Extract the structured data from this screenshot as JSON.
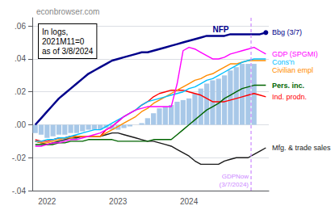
{
  "chart_data": {
    "type": "bar",
    "title": "econbrowser.com",
    "annotations": [
      {
        "text": "In logs,\n2021M11=0\nas of 3/8/2024"
      },
      {
        "text": "Bbg (3/7)",
        "color": "#00008B",
        "series": "NFP"
      },
      {
        "text": "GDPNow\n(3/7/2024)",
        "color": "#CC88FF"
      }
    ],
    "categories": [
      null,
      null,
      "2022",
      null,
      null,
      null,
      null,
      null,
      null,
      null,
      null,
      null,
      null,
      null,
      "2023",
      null,
      null,
      null,
      null,
      null,
      null,
      null,
      null,
      null,
      null,
      null,
      "2024",
      null,
      null,
      null,
      null,
      null,
      null,
      null,
      null,
      null,
      null,
      null,
      null,
      null
    ],
    "series": [
      {
        "type": "bar",
        "color": "#A8C8E8",
        "values": [
          -0.005,
          -0.006,
          -0.008,
          -0.007,
          -0.006,
          -0.006,
          -0.005,
          -0.005,
          -0.004,
          -0.003,
          -0.003,
          -0.003,
          -0.002,
          -0.003,
          -0.003,
          -0.002,
          -0.001,
          0.0,
          0.001,
          0.004,
          0.007,
          0.01,
          0.011,
          0.012,
          0.014,
          0.015,
          0.016,
          0.019,
          0.022,
          0.025,
          0.027,
          0.028,
          0.03,
          0.033,
          0.035,
          0.037,
          0.037,
          0.037,
          0.0,
          0.0
        ]
      },
      {
        "type": "line",
        "name": "Mfg. & trade sales",
        "color": "#1A1A1A",
        "values": [
          -0.01,
          -0.011,
          -0.012,
          -0.011,
          -0.01,
          -0.009,
          -0.008,
          -0.008,
          -0.007,
          -0.007,
          -0.007,
          -0.007,
          -0.006,
          -0.005,
          -0.005,
          -0.006,
          -0.007,
          -0.008,
          -0.009,
          -0.01,
          -0.01,
          -0.011,
          -0.012,
          -0.013,
          -0.015,
          -0.017,
          -0.019,
          -0.022,
          -0.024,
          -0.024,
          -0.024,
          -0.024,
          -0.022,
          -0.021,
          -0.02,
          -0.02,
          -0.02,
          -0.018,
          -0.016,
          -0.014
        ]
      },
      {
        "type": "line",
        "name": "Ind. prodn.",
        "color": "#FF0000",
        "values": [
          -0.009,
          -0.01,
          -0.01,
          -0.009,
          -0.008,
          -0.008,
          -0.007,
          -0.007,
          -0.007,
          -0.007,
          -0.007,
          -0.007,
          -0.003,
          -0.001,
          0.002,
          0.005,
          0.007,
          0.009,
          0.012,
          0.014,
          0.017,
          0.019,
          0.02,
          0.021,
          0.021,
          0.021,
          0.02,
          0.019,
          0.018,
          0.016,
          0.014,
          0.014,
          0.014,
          0.015,
          0.016,
          0.017,
          0.018,
          0.019,
          0.018,
          0.017
        ]
      },
      {
        "type": "line",
        "name": "Pers. inc.",
        "color": "#006400",
        "values": [
          -0.012,
          -0.012,
          -0.012,
          -0.012,
          -0.011,
          -0.011,
          -0.01,
          -0.01,
          -0.01,
          -0.009,
          -0.009,
          -0.009,
          -0.009,
          -0.009,
          -0.01,
          -0.01,
          -0.01,
          -0.01,
          -0.01,
          -0.01,
          -0.009,
          -0.009,
          -0.009,
          -0.009,
          -0.006,
          -0.003,
          0.0,
          0.003,
          0.006,
          0.009,
          0.011,
          0.013,
          0.016,
          0.018,
          0.02,
          0.022,
          0.023,
          0.024,
          0.024,
          0.024
        ]
      },
      {
        "type": "line",
        "name": "Civilian empl",
        "color": "#FF8C00",
        "values": [
          -0.01,
          -0.011,
          -0.011,
          -0.01,
          -0.009,
          -0.008,
          -0.008,
          -0.007,
          -0.007,
          -0.007,
          -0.007,
          -0.007,
          -0.005,
          -0.003,
          -0.001,
          0.001,
          0.003,
          0.005,
          0.008,
          0.01,
          0.013,
          0.015,
          0.017,
          0.019,
          0.021,
          0.023,
          0.025,
          0.027,
          0.028,
          0.03,
          0.031,
          0.033,
          0.035,
          0.037,
          0.037,
          0.038,
          0.039,
          0.039,
          0.039,
          0.039
        ]
      },
      {
        "type": "line",
        "name": "Cons'n",
        "color": "#00BFFF",
        "values": [
          -0.01,
          -0.01,
          -0.009,
          -0.009,
          -0.008,
          -0.008,
          -0.007,
          -0.006,
          -0.005,
          -0.004,
          -0.003,
          -0.003,
          -0.001,
          0.001,
          0.003,
          0.005,
          0.007,
          0.009,
          0.012,
          0.014,
          0.015,
          0.016,
          0.017,
          0.018,
          0.019,
          0.02,
          0.022,
          0.023,
          0.025,
          0.027,
          0.028,
          0.03,
          0.032,
          0.034,
          0.036,
          0.038,
          0.039,
          0.04,
          0.04,
          0.04
        ]
      },
      {
        "type": "line",
        "name": "GDP (SPGMI)",
        "color": "#FF00FF",
        "values": [
          -0.013,
          -0.013,
          -0.012,
          -0.011,
          -0.011,
          -0.01,
          -0.009,
          -0.009,
          -0.008,
          -0.007,
          -0.006,
          -0.005,
          -0.003,
          -0.001,
          0.002,
          0.005,
          0.007,
          0.009,
          0.01,
          0.011,
          0.011,
          0.011,
          0.011,
          0.011,
          0.025,
          0.045,
          0.047,
          0.046,
          0.044,
          0.042,
          0.04,
          0.04,
          0.041,
          0.043,
          0.044,
          0.045,
          0.046,
          0.047,
          0.045,
          0.043
        ]
      },
      {
        "type": "line",
        "name": "NFP",
        "color": "#00008B",
        "values": [
          0.0,
          0.004,
          0.008,
          0.012,
          0.016,
          0.019,
          0.022,
          0.025,
          0.028,
          0.031,
          0.033,
          0.035,
          0.037,
          0.039,
          0.04,
          0.041,
          0.042,
          0.043,
          0.044,
          0.044,
          0.045,
          0.046,
          0.047,
          0.048,
          0.049,
          0.05,
          0.051,
          0.052,
          0.053,
          0.054,
          0.054,
          0.054,
          0.054,
          0.055,
          0.055,
          0.055,
          0.055,
          0.055,
          0.055,
          0.056
        ]
      }
    ],
    "ylim": [
      -0.04,
      0.065
    ],
    "yticks": [
      {
        "value": -0.04,
        "label": "-.04"
      },
      {
        "value": -0.02,
        "label": "-.02"
      },
      {
        "value": 0.0,
        "label": ".00"
      },
      {
        "value": 0.02,
        "label": ".02"
      },
      {
        "value": 0.04,
        "label": ".04"
      },
      {
        "value": 0.06,
        "label": ".06"
      }
    ],
    "grid": true
  }
}
